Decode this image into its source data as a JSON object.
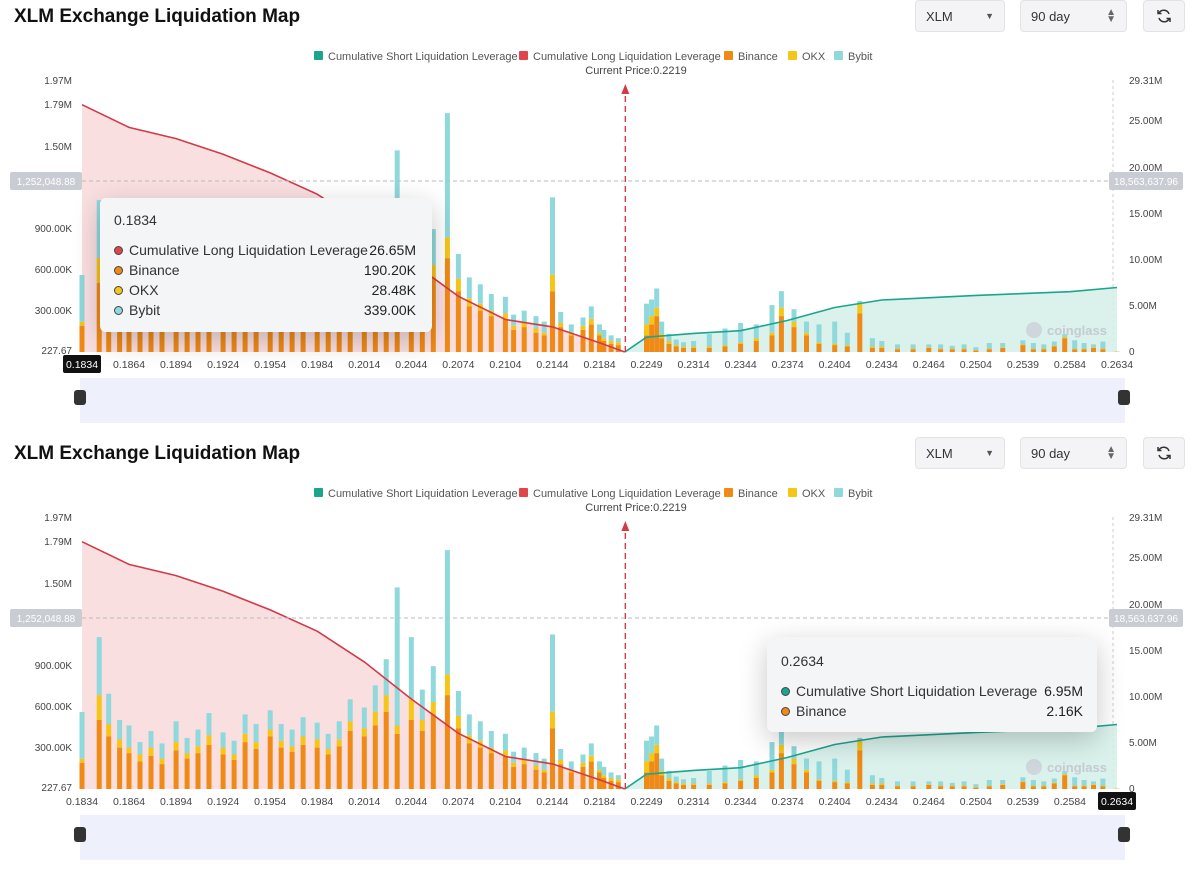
{
  "header": {
    "title": "XLM Exchange Liquidation Map",
    "coin": "XLM",
    "range": "90 day"
  },
  "legend": [
    {
      "label": "Cumulative Short Liquidation Leverage",
      "color": "#1ba58f"
    },
    {
      "label": "Cumulative Long Liquidation Leverage",
      "color": "#e0454e"
    },
    {
      "label": "Binance",
      "color": "#f08a16"
    },
    {
      "label": "OKX",
      "color": "#f5c518"
    },
    {
      "label": "Bybit",
      "color": "#8fd8dc"
    }
  ],
  "current_price_label": "Current Price:0.2219",
  "y_left_ticks": [
    "1.97M",
    "1.79M",
    "1.50M",
    "900.00K",
    "600.00K",
    "300.00K",
    "227.67"
  ],
  "y_right_ticks": [
    "29.31M",
    "25.00M",
    "20.00M",
    "15.00M",
    "10.00M",
    "5.00M",
    "0"
  ],
  "crosshair": {
    "left": "1,252,048.88",
    "right": "18,563,637.96"
  },
  "x_ticks": [
    "0.1834",
    "0.1864",
    "0.1894",
    "0.1924",
    "0.1954",
    "0.1984",
    "0.2014",
    "0.2044",
    "0.2074",
    "0.2104",
    "0.2144",
    "0.2184",
    "0.2249",
    "0.2314",
    "0.2344",
    "0.2374",
    "0.2404",
    "0.2434",
    "0.2464",
    "0.2504",
    "0.2539",
    "0.2584",
    "0.2634"
  ],
  "watermark": "coinglass",
  "tooltip_top": {
    "price": "0.1834",
    "rows": [
      {
        "label": "Cumulative Long Liquidation Leverage",
        "value": "26.65M",
        "color": "#e0454e"
      },
      {
        "label": "Binance",
        "value": "190.20K",
        "color": "#f08a16"
      },
      {
        "label": "OKX",
        "value": "28.48K",
        "color": "#f5c518"
      },
      {
        "label": "Bybit",
        "value": "339.00K",
        "color": "#8fd8dc"
      }
    ]
  },
  "tooltip_bottom": {
    "price": "0.2634",
    "rows": [
      {
        "label": "Cumulative Short Liquidation Leverage",
        "value": "6.95M",
        "color": "#1ba58f"
      },
      {
        "label": "Binance",
        "value": "2.16K",
        "color": "#f08a16"
      }
    ]
  },
  "chart_data": {
    "type": "bar",
    "title": "XLM Exchange Liquidation Map",
    "current_price": 0.2219,
    "x_ticks": [
      0.1834,
      0.1864,
      0.1894,
      0.1924,
      0.1954,
      0.1984,
      0.2014,
      0.2044,
      0.2074,
      0.2104,
      0.2144,
      0.2184,
      0.2249,
      0.2314,
      0.2344,
      0.2374,
      0.2404,
      0.2434,
      0.2464,
      0.2504,
      0.2539,
      0.2584,
      0.2634
    ],
    "ylim_left": [
      227.67,
      1970000
    ],
    "ylim_right": [
      0,
      29310000
    ],
    "bars": [
      [
        0.1834,
        190200,
        28480,
        339000
      ],
      [
        0.1845,
        500000,
        180000,
        420000
      ],
      [
        0.1851,
        380000,
        90000,
        220000
      ],
      [
        0.1858,
        300000,
        60000,
        140000
      ],
      [
        0.1864,
        260000,
        40000,
        160000
      ],
      [
        0.1871,
        200000,
        50000,
        90000
      ],
      [
        0.1878,
        240000,
        60000,
        120000
      ],
      [
        0.1885,
        180000,
        40000,
        110000
      ],
      [
        0.1894,
        280000,
        60000,
        150000
      ],
      [
        0.1901,
        220000,
        40000,
        110000
      ],
      [
        0.1908,
        260000,
        50000,
        120000
      ],
      [
        0.1915,
        320000,
        70000,
        160000
      ],
      [
        0.1924,
        250000,
        50000,
        110000
      ],
      [
        0.1931,
        210000,
        40000,
        100000
      ],
      [
        0.1938,
        340000,
        60000,
        140000
      ],
      [
        0.1945,
        290000,
        50000,
        130000
      ],
      [
        0.1954,
        380000,
        50000,
        140000
      ],
      [
        0.1961,
        300000,
        50000,
        120000
      ],
      [
        0.1968,
        270000,
        40000,
        120000
      ],
      [
        0.1975,
        320000,
        60000,
        140000
      ],
      [
        0.1984,
        300000,
        60000,
        120000
      ],
      [
        0.1991,
        250000,
        40000,
        110000
      ],
      [
        0.1998,
        310000,
        50000,
        130000
      ],
      [
        0.2005,
        420000,
        70000,
        160000
      ],
      [
        0.2014,
        380000,
        60000,
        150000
      ],
      [
        0.2021,
        460000,
        100000,
        190000
      ],
      [
        0.2028,
        560000,
        120000,
        260000
      ],
      [
        0.2035,
        400000,
        60000,
        1000000
      ],
      [
        0.2044,
        500000,
        150000,
        450000
      ],
      [
        0.2051,
        420000,
        80000,
        220000
      ],
      [
        0.2058,
        540000,
        90000,
        260000
      ],
      [
        0.2067,
        680000,
        150000,
        900000
      ],
      [
        0.2074,
        440000,
        90000,
        180000
      ],
      [
        0.2081,
        330000,
        60000,
        150000
      ],
      [
        0.2088,
        300000,
        50000,
        140000
      ],
      [
        0.2095,
        260000,
        40000,
        120000
      ],
      [
        0.2104,
        240000,
        40000,
        120000
      ],
      [
        0.2111,
        160000,
        30000,
        80000
      ],
      [
        0.212,
        180000,
        30000,
        90000
      ],
      [
        0.213,
        140000,
        30000,
        90000
      ],
      [
        0.2137,
        120000,
        20000,
        80000
      ],
      [
        0.2144,
        440000,
        120000,
        560000
      ],
      [
        0.2151,
        180000,
        30000,
        80000
      ],
      [
        0.216,
        120000,
        20000,
        60000
      ],
      [
        0.217,
        160000,
        30000,
        60000
      ],
      [
        0.2177,
        200000,
        40000,
        90000
      ],
      [
        0.2184,
        120000,
        20000,
        60000
      ],
      [
        0.219,
        80000,
        20000,
        60000
      ],
      [
        0.22,
        60000,
        20000,
        40000
      ],
      [
        0.221,
        50000,
        20000,
        30000
      ],
      [
        0.2249,
        120000,
        80000,
        150000
      ],
      [
        0.2256,
        200000,
        60000,
        120000
      ],
      [
        0.2263,
        260000,
        60000,
        140000
      ],
      [
        0.227,
        100000,
        30000,
        90000
      ],
      [
        0.228,
        60000,
        20000,
        50000
      ],
      [
        0.229,
        40000,
        10000,
        40000
      ],
      [
        0.23,
        30000,
        10000,
        30000
      ],
      [
        0.2314,
        30000,
        10000,
        40000
      ],
      [
        0.2324,
        30000,
        10000,
        90000
      ],
      [
        0.2334,
        40000,
        10000,
        120000
      ],
      [
        0.2344,
        60000,
        10000,
        140000
      ],
      [
        0.2354,
        80000,
        20000,
        100000
      ],
      [
        0.2364,
        120000,
        20000,
        200000
      ],
      [
        0.237,
        260000,
        60000,
        120000
      ],
      [
        0.2378,
        180000,
        40000,
        90000
      ],
      [
        0.2386,
        120000,
        20000,
        80000
      ],
      [
        0.2394,
        60000,
        10000,
        130000
      ],
      [
        0.2404,
        50000,
        10000,
        160000
      ],
      [
        0.2412,
        40000,
        10000,
        90000
      ],
      [
        0.242,
        280000,
        70000,
        20000
      ],
      [
        0.2428,
        30000,
        10000,
        60000
      ],
      [
        0.2434,
        30000,
        10000,
        40000
      ],
      [
        0.2444,
        20000,
        5000,
        30000
      ],
      [
        0.2454,
        20000,
        5000,
        30000
      ],
      [
        0.2464,
        30000,
        5000,
        20000
      ],
      [
        0.2474,
        20000,
        5000,
        30000
      ],
      [
        0.2484,
        20000,
        5000,
        20000
      ],
      [
        0.2494,
        20000,
        5000,
        30000
      ],
      [
        0.2504,
        10000,
        5000,
        20000
      ],
      [
        0.2514,
        20000,
        5000,
        40000
      ],
      [
        0.2524,
        30000,
        5000,
        30000
      ],
      [
        0.2539,
        50000,
        5000,
        30000
      ],
      [
        0.2549,
        20000,
        5000,
        40000
      ],
      [
        0.2559,
        20000,
        5000,
        30000
      ],
      [
        0.2569,
        40000,
        5000,
        30000
      ],
      [
        0.2579,
        100000,
        10000,
        20000
      ],
      [
        0.2589,
        20000,
        5000,
        60000
      ],
      [
        0.2599,
        20000,
        5000,
        40000
      ],
      [
        0.2609,
        30000,
        5000,
        20000
      ],
      [
        0.2619,
        20000,
        5000,
        50000
      ],
      [
        0.2634,
        2160,
        0,
        0
      ]
    ],
    "bar_columns": [
      "price",
      "Binance",
      "OKX",
      "Bybit"
    ],
    "long_cumulative": [
      [
        0.1834,
        26650000
      ],
      [
        0.1864,
        24200000
      ],
      [
        0.1894,
        23000000
      ],
      [
        0.1924,
        21300000
      ],
      [
        0.1954,
        19300000
      ],
      [
        0.1984,
        17000000
      ],
      [
        0.2014,
        13700000
      ],
      [
        0.2044,
        9700000
      ],
      [
        0.2074,
        6000000
      ],
      [
        0.2104,
        3500000
      ],
      [
        0.2144,
        2700000
      ],
      [
        0.2184,
        1000000
      ],
      [
        0.2219,
        0
      ]
    ],
    "short_cumulative": [
      [
        0.2219,
        0
      ],
      [
        0.2249,
        1600000
      ],
      [
        0.2314,
        2000000
      ],
      [
        0.2344,
        2300000
      ],
      [
        0.2374,
        3400000
      ],
      [
        0.2404,
        4800000
      ],
      [
        0.2434,
        5600000
      ],
      [
        0.2504,
        6100000
      ],
      [
        0.2584,
        6500000
      ],
      [
        0.2634,
        6950000
      ]
    ]
  }
}
